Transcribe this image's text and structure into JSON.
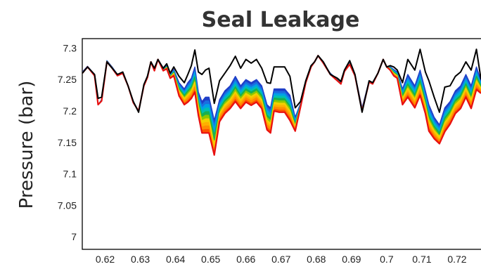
{
  "chart_data": {
    "type": "line",
    "title": "Seal Leakage",
    "xlabel": "",
    "ylabel": "Pressure (bar)",
    "xlim": [
      0.6135,
      0.7268
    ],
    "ylim": [
      6.98,
      7.315
    ],
    "xticks": [
      "0.62",
      "0.63",
      "0.64",
      "0.65",
      "0.66",
      "0.67",
      "0.68",
      "0.69",
      "0.7",
      "0.71",
      "0.72"
    ],
    "yticks": [
      "7",
      "7.05",
      "7.1",
      "7.15",
      "7.2",
      "7.25",
      "7.3"
    ],
    "grid": false,
    "legend": "none",
    "x": [
      0.6135,
      0.615,
      0.617,
      0.618,
      0.619,
      0.6205,
      0.622,
      0.6235,
      0.625,
      0.6265,
      0.628,
      0.6295,
      0.631,
      0.632,
      0.633,
      0.634,
      0.635,
      0.6365,
      0.6375,
      0.6385,
      0.6395,
      0.641,
      0.6425,
      0.6435,
      0.6445,
      0.6455,
      0.6465,
      0.6475,
      0.6485,
      0.6495,
      0.651,
      0.6525,
      0.654,
      0.6555,
      0.657,
      0.6585,
      0.66,
      0.6615,
      0.663,
      0.6645,
      0.666,
      0.667,
      0.668,
      0.6695,
      0.671,
      0.6725,
      0.674,
      0.6755,
      0.677,
      0.6785,
      0.6795,
      0.6805,
      0.682,
      0.684,
      0.686,
      0.687,
      0.688,
      0.6895,
      0.691,
      0.693,
      0.695,
      0.696,
      0.6975,
      0.699,
      0.7,
      0.701,
      0.702,
      0.703,
      0.7045,
      0.706,
      0.708,
      0.7095,
      0.711,
      0.712,
      0.7135,
      0.715,
      0.7165,
      0.718,
      0.7195,
      0.721,
      0.7225,
      0.724,
      0.7255,
      0.7268
    ],
    "series": [
      {
        "color": "#000000",
        "values": [
          7.26,
          7.27,
          7.258,
          7.22,
          7.222,
          7.278,
          7.268,
          7.258,
          7.262,
          7.24,
          7.215,
          7.198,
          7.242,
          7.255,
          7.278,
          7.268,
          7.282,
          7.268,
          7.275,
          7.26,
          7.27,
          7.255,
          7.245,
          7.258,
          7.272,
          7.297,
          7.262,
          7.258,
          7.265,
          7.268,
          7.212,
          7.248,
          7.26,
          7.272,
          7.287,
          7.268,
          7.282,
          7.276,
          7.282,
          7.268,
          7.245,
          7.244,
          7.27,
          7.27,
          7.27,
          7.255,
          7.205,
          7.215,
          7.248,
          7.272,
          7.278,
          7.288,
          7.278,
          7.258,
          7.252,
          7.247,
          7.265,
          7.28,
          7.258,
          7.198,
          7.248,
          7.245,
          7.26,
          7.282,
          7.27,
          7.272,
          7.27,
          7.265,
          7.245,
          7.282,
          7.265,
          7.298,
          7.262,
          7.248,
          7.222,
          7.198,
          7.238,
          7.24,
          7.255,
          7.262,
          7.278,
          7.265,
          7.298,
          7.25
        ]
      },
      {
        "color": "#1f3fc8",
        "values": [
          7.262,
          7.271,
          7.258,
          7.21,
          7.218,
          7.28,
          7.27,
          7.258,
          7.262,
          7.24,
          7.215,
          7.2,
          7.242,
          7.255,
          7.278,
          7.266,
          7.282,
          7.266,
          7.272,
          7.257,
          7.266,
          7.245,
          7.235,
          7.245,
          7.252,
          7.27,
          7.23,
          7.215,
          7.222,
          7.222,
          7.185,
          7.218,
          7.232,
          7.24,
          7.255,
          7.24,
          7.25,
          7.245,
          7.25,
          7.24,
          7.21,
          7.205,
          7.235,
          7.235,
          7.235,
          7.225,
          7.19,
          7.212,
          7.248,
          7.272,
          7.278,
          7.288,
          7.276,
          7.26,
          7.25,
          7.245,
          7.265,
          7.276,
          7.258,
          7.205,
          7.248,
          7.245,
          7.26,
          7.282,
          7.27,
          7.27,
          7.266,
          7.262,
          7.235,
          7.258,
          7.24,
          7.265,
          7.232,
          7.21,
          7.19,
          7.178,
          7.205,
          7.215,
          7.232,
          7.24,
          7.258,
          7.24,
          7.27,
          7.248
        ]
      },
      {
        "color": "#00a0e6",
        "values": [
          7.261,
          7.27,
          7.257,
          7.21,
          7.217,
          7.279,
          7.269,
          7.257,
          7.261,
          7.24,
          7.214,
          7.2,
          7.241,
          7.254,
          7.278,
          7.265,
          7.282,
          7.265,
          7.271,
          7.256,
          7.264,
          7.24,
          7.23,
          7.238,
          7.245,
          7.262,
          7.222,
          7.203,
          7.21,
          7.21,
          7.168,
          7.21,
          7.224,
          7.232,
          7.246,
          7.232,
          7.242,
          7.237,
          7.242,
          7.232,
          7.2,
          7.195,
          7.227,
          7.226,
          7.226,
          7.216,
          7.185,
          7.21,
          7.247,
          7.271,
          7.278,
          7.288,
          7.276,
          7.259,
          7.249,
          7.244,
          7.264,
          7.275,
          7.257,
          7.203,
          7.247,
          7.244,
          7.26,
          7.282,
          7.27,
          7.269,
          7.264,
          7.26,
          7.23,
          7.25,
          7.233,
          7.256,
          7.224,
          7.2,
          7.182,
          7.17,
          7.196,
          7.207,
          7.224,
          7.232,
          7.25,
          7.232,
          7.262,
          7.244
        ]
      },
      {
        "color": "#18b050",
        "values": [
          7.261,
          7.27,
          7.257,
          7.21,
          7.217,
          7.279,
          7.269,
          7.257,
          7.261,
          7.24,
          7.214,
          7.2,
          7.241,
          7.254,
          7.278,
          7.265,
          7.282,
          7.265,
          7.27,
          7.255,
          7.262,
          7.236,
          7.225,
          7.232,
          7.238,
          7.254,
          7.215,
          7.192,
          7.198,
          7.198,
          7.154,
          7.203,
          7.217,
          7.225,
          7.238,
          7.225,
          7.235,
          7.23,
          7.235,
          7.225,
          7.192,
          7.187,
          7.22,
          7.219,
          7.219,
          7.208,
          7.18,
          7.209,
          7.247,
          7.271,
          7.278,
          7.288,
          7.276,
          7.259,
          7.249,
          7.244,
          7.264,
          7.275,
          7.257,
          7.202,
          7.247,
          7.244,
          7.26,
          7.282,
          7.27,
          7.268,
          7.262,
          7.258,
          7.225,
          7.243,
          7.226,
          7.248,
          7.217,
          7.192,
          7.175,
          7.163,
          7.188,
          7.2,
          7.217,
          7.225,
          7.243,
          7.225,
          7.255,
          7.24
        ]
      },
      {
        "color": "#f2d000",
        "values": [
          7.26,
          7.27,
          7.256,
          7.21,
          7.216,
          7.278,
          7.268,
          7.256,
          7.26,
          7.24,
          7.213,
          7.2,
          7.24,
          7.253,
          7.278,
          7.264,
          7.282,
          7.264,
          7.269,
          7.254,
          7.26,
          7.232,
          7.22,
          7.226,
          7.232,
          7.246,
          7.208,
          7.182,
          7.187,
          7.186,
          7.143,
          7.196,
          7.21,
          7.218,
          7.23,
          7.218,
          7.228,
          7.223,
          7.228,
          7.218,
          7.185,
          7.18,
          7.213,
          7.212,
          7.212,
          7.2,
          7.176,
          7.208,
          7.246,
          7.27,
          7.278,
          7.288,
          7.276,
          7.258,
          7.248,
          7.243,
          7.263,
          7.274,
          7.256,
          7.201,
          7.246,
          7.243,
          7.26,
          7.282,
          7.27,
          7.267,
          7.26,
          7.256,
          7.22,
          7.236,
          7.219,
          7.24,
          7.21,
          7.184,
          7.168,
          7.157,
          7.181,
          7.193,
          7.21,
          7.218,
          7.236,
          7.218,
          7.248,
          7.236
        ]
      },
      {
        "color": "#ff8c00",
        "values": [
          7.26,
          7.27,
          7.256,
          7.21,
          7.216,
          7.278,
          7.268,
          7.256,
          7.26,
          7.24,
          7.213,
          7.2,
          7.24,
          7.253,
          7.278,
          7.264,
          7.282,
          7.264,
          7.268,
          7.253,
          7.258,
          7.228,
          7.215,
          7.22,
          7.226,
          7.238,
          7.2,
          7.172,
          7.176,
          7.175,
          7.136,
          7.19,
          7.203,
          7.211,
          7.222,
          7.211,
          7.221,
          7.216,
          7.221,
          7.211,
          7.178,
          7.173,
          7.206,
          7.205,
          7.205,
          7.192,
          7.172,
          7.207,
          7.246,
          7.27,
          7.278,
          7.288,
          7.276,
          7.258,
          7.248,
          7.243,
          7.263,
          7.274,
          7.256,
          7.2,
          7.246,
          7.243,
          7.26,
          7.282,
          7.27,
          7.266,
          7.258,
          7.254,
          7.215,
          7.229,
          7.212,
          7.232,
          7.203,
          7.176,
          7.162,
          7.152,
          7.174,
          7.186,
          7.203,
          7.211,
          7.229,
          7.211,
          7.241,
          7.232
        ]
      },
      {
        "color": "#e81010",
        "values": [
          7.26,
          7.27,
          7.256,
          7.21,
          7.216,
          7.278,
          7.268,
          7.256,
          7.26,
          7.24,
          7.213,
          7.2,
          7.24,
          7.253,
          7.278,
          7.264,
          7.282,
          7.264,
          7.267,
          7.252,
          7.256,
          7.224,
          7.21,
          7.214,
          7.22,
          7.23,
          7.193,
          7.165,
          7.165,
          7.165,
          7.13,
          7.183,
          7.196,
          7.204,
          7.215,
          7.204,
          7.214,
          7.209,
          7.214,
          7.204,
          7.17,
          7.165,
          7.2,
          7.198,
          7.198,
          7.185,
          7.168,
          7.206,
          7.245,
          7.27,
          7.278,
          7.288,
          7.276,
          7.258,
          7.248,
          7.243,
          7.263,
          7.274,
          7.256,
          7.2,
          7.246,
          7.243,
          7.26,
          7.282,
          7.27,
          7.265,
          7.256,
          7.252,
          7.21,
          7.222,
          7.205,
          7.225,
          7.196,
          7.168,
          7.156,
          7.148,
          7.167,
          7.179,
          7.196,
          7.204,
          7.222,
          7.204,
          7.234,
          7.228
        ]
      }
    ]
  }
}
